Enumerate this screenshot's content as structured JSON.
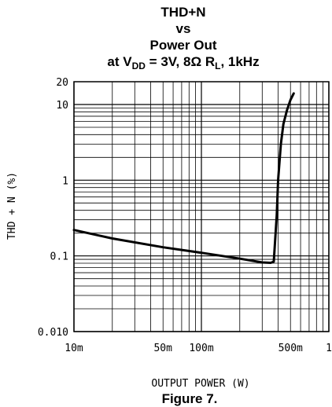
{
  "chart_data": {
    "type": "line",
    "title": {
      "line1": "THD+N",
      "line2": "vs",
      "line3": "Power Out",
      "line4_prefix": "at V",
      "line4_sub1": "DD",
      "line4_mid": " = 3V, 8Ω R",
      "line4_sub2": "L",
      "line4_suffix": ", 1kHz"
    },
    "xlabel": "OUTPUT POWER (W)",
    "ylabel": "THD + N (%)",
    "xscale": "log",
    "yscale": "log",
    "xlim": [
      0.01,
      1
    ],
    "ylim": [
      0.01,
      20
    ],
    "grid": true,
    "x_tick_labels": [
      {
        "value": 0.01,
        "label": "10m"
      },
      {
        "value": 0.05,
        "label": "50m"
      },
      {
        "value": 0.1,
        "label": "100m"
      },
      {
        "value": 0.5,
        "label": "500m"
      },
      {
        "value": 1,
        "label": "1"
      }
    ],
    "y_tick_labels": [
      {
        "value": 0.01,
        "label": "0.010"
      },
      {
        "value": 0.1,
        "label": "0.1"
      },
      {
        "value": 1,
        "label": "1"
      },
      {
        "value": 10,
        "label": "10"
      },
      {
        "value": 20,
        "label": "20"
      }
    ],
    "series": [
      {
        "values": [
          {
            "x": 0.01,
            "y": 0.22
          },
          {
            "x": 0.02,
            "y": 0.17
          },
          {
            "x": 0.05,
            "y": 0.13
          },
          {
            "x": 0.1,
            "y": 0.11
          },
          {
            "x": 0.2,
            "y": 0.092
          },
          {
            "x": 0.3,
            "y": 0.082
          },
          {
            "x": 0.35,
            "y": 0.081
          },
          {
            "x": 0.37,
            "y": 0.084
          },
          {
            "x": 0.39,
            "y": 0.35
          },
          {
            "x": 0.4,
            "y": 1.0
          },
          {
            "x": 0.42,
            "y": 3.0
          },
          {
            "x": 0.44,
            "y": 5.5
          },
          {
            "x": 0.47,
            "y": 8.5
          },
          {
            "x": 0.5,
            "y": 11.5
          },
          {
            "x": 0.53,
            "y": 14.0
          }
        ]
      }
    ]
  },
  "caption": "Figure 7."
}
